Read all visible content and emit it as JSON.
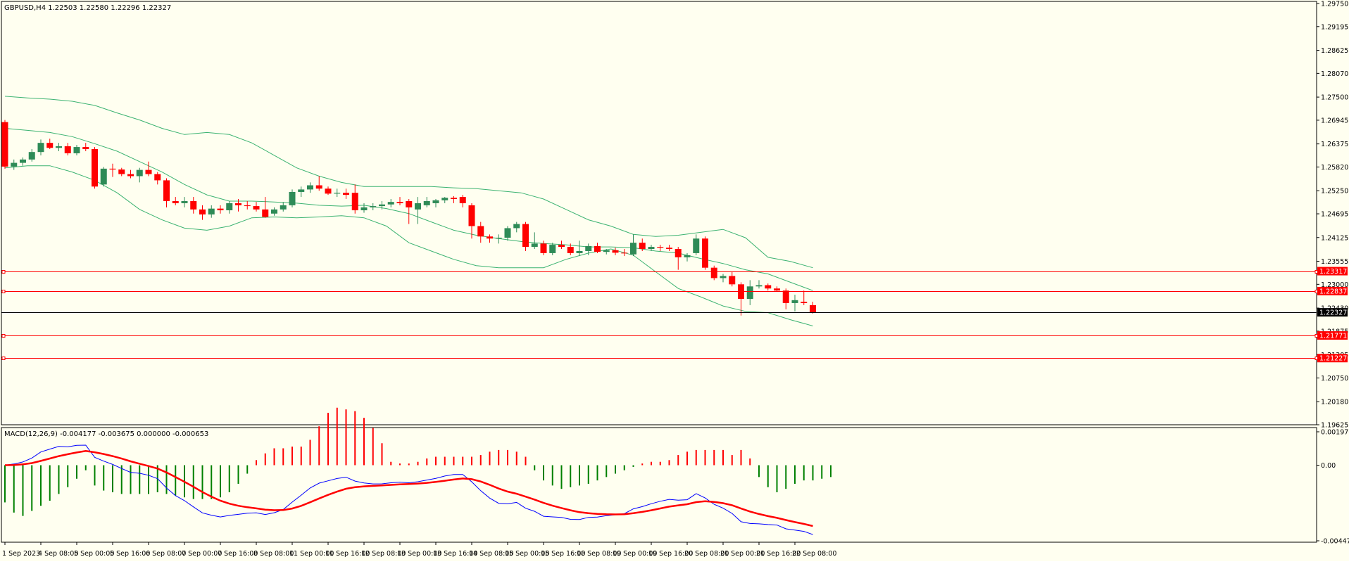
{
  "colors": {
    "background": "#fffff0",
    "frame": "#000000",
    "bull": "#2e8b57",
    "bear": "#ff0000",
    "bands": "#3cb371",
    "level_line": "#ff0000",
    "price_line": "#000000",
    "macd_line": "#0000ff",
    "signal_line": "#ff0000",
    "hist_pos": "#ff0000",
    "hist_neg": "#008000"
  },
  "chart_data": [
    {
      "type": "candlestick",
      "title": "GBPUSD,H4  1.22503 1.22580 1.22296 1.22327",
      "ylim": [
        1.19625,
        1.298
      ],
      "y_ticks": [
        "1.29750",
        "1.29195",
        "1.28625",
        "1.28070",
        "1.27500",
        "1.26945",
        "1.26375",
        "1.25820",
        "1.25250",
        "1.24695",
        "1.24125",
        "1.23555",
        "1.23000",
        "1.22430",
        "1.21875",
        "1.21305",
        "1.20750",
        "1.20180",
        "1.19625"
      ],
      "x_labels": [
        "1 Sep 2023",
        "4 Sep 08:00",
        "5 Sep 00:00",
        "5 Sep 16:00",
        "6 Sep 08:00",
        "7 Sep 00:00",
        "7 Sep 16:00",
        "8 Sep 08:00",
        "11 Sep 00:00",
        "11 Sep 16:00",
        "12 Sep 08:00",
        "13 Sep 00:00",
        "13 Sep 16:00",
        "14 Sep 08:00",
        "15 Sep 00:00",
        "15 Sep 16:00",
        "18 Sep 08:00",
        "19 Sep 00:00",
        "19 Sep 16:00",
        "20 Sep 08:00",
        "21 Sep 00:00",
        "21 Sep 16:00",
        "22 Sep 08:00"
      ],
      "x_label_candle_index": [
        0,
        4,
        8,
        12,
        16,
        20,
        24,
        28,
        32,
        36,
        40,
        44,
        48,
        52,
        56,
        60,
        64,
        68,
        72,
        76,
        80,
        84,
        88
      ],
      "candles": [
        [
          1.269,
          1.2695,
          1.2578,
          1.2583
        ],
        [
          1.2583,
          1.26,
          1.2575,
          1.2592
        ],
        [
          1.2592,
          1.2605,
          1.2585,
          1.26
        ],
        [
          1.26,
          1.2625,
          1.2595,
          1.2618
        ],
        [
          1.2618,
          1.2648,
          1.261,
          1.264
        ],
        [
          1.264,
          1.265,
          1.2625,
          1.2628
        ],
        [
          1.2628,
          1.264,
          1.262,
          1.2632
        ],
        [
          1.2632,
          1.264,
          1.261,
          1.2615
        ],
        [
          1.2615,
          1.2635,
          1.261,
          1.263
        ],
        [
          1.263,
          1.264,
          1.262,
          1.2625
        ],
        [
          1.2625,
          1.263,
          1.253,
          1.2535
        ],
        [
          1.254,
          1.2582,
          1.2535,
          1.2578
        ],
        [
          1.2578,
          1.259,
          1.2558,
          1.2576
        ],
        [
          1.2576,
          1.258,
          1.256,
          1.2565
        ],
        [
          1.2565,
          1.2575,
          1.2555,
          1.256
        ],
        [
          1.256,
          1.258,
          1.2545,
          1.2575
        ],
        [
          1.2575,
          1.2595,
          1.256,
          1.2565
        ],
        [
          1.2565,
          1.257,
          1.254,
          1.255
        ],
        [
          1.255,
          1.2555,
          1.2485,
          1.25
        ],
        [
          1.25,
          1.251,
          1.249,
          1.2495
        ],
        [
          1.2495,
          1.251,
          1.2485,
          1.25
        ],
        [
          1.25,
          1.251,
          1.247,
          1.248
        ],
        [
          1.248,
          1.249,
          1.2455,
          1.2468
        ],
        [
          1.2468,
          1.249,
          1.246,
          1.2482
        ],
        [
          1.2482,
          1.249,
          1.247,
          1.2478
        ],
        [
          1.2478,
          1.25,
          1.247,
          1.2495
        ],
        [
          1.2495,
          1.2505,
          1.2475,
          1.249
        ],
        [
          1.249,
          1.25,
          1.248,
          1.2488
        ],
        [
          1.2488,
          1.2498,
          1.2475,
          1.248
        ],
        [
          1.248,
          1.251,
          1.246,
          1.2462
        ],
        [
          1.247,
          1.2485,
          1.2465,
          1.248
        ],
        [
          1.248,
          1.2498,
          1.2475,
          1.249
        ],
        [
          1.249,
          1.2528,
          1.2485,
          1.2522
        ],
        [
          1.2522,
          1.2535,
          1.251,
          1.2528
        ],
        [
          1.2528,
          1.2545,
          1.252,
          1.2538
        ],
        [
          1.2538,
          1.256,
          1.2525,
          1.253
        ],
        [
          1.253,
          1.2535,
          1.2515,
          1.2518
        ],
        [
          1.2518,
          1.253,
          1.251,
          1.252
        ],
        [
          1.252,
          1.253,
          1.2505,
          1.2515
        ],
        [
          1.252,
          1.254,
          1.247,
          1.2478
        ],
        [
          1.2478,
          1.2495,
          1.2472,
          1.2485
        ],
        [
          1.2485,
          1.2495,
          1.2478,
          1.2488
        ],
        [
          1.2488,
          1.25,
          1.248,
          1.2492
        ],
        [
          1.2492,
          1.2505,
          1.2485,
          1.2498
        ],
        [
          1.2498,
          1.251,
          1.249,
          1.2495
        ],
        [
          1.25,
          1.2505,
          1.2445,
          1.2485
        ],
        [
          1.248,
          1.251,
          1.2445,
          1.2495
        ],
        [
          1.249,
          1.251,
          1.2485,
          1.25
        ],
        [
          1.2495,
          1.2505,
          1.2485,
          1.2502
        ],
        [
          1.2502,
          1.251,
          1.2495,
          1.2508
        ],
        [
          1.2508,
          1.2512,
          1.2495,
          1.2505
        ],
        [
          1.251,
          1.2515,
          1.2485,
          1.2495
        ],
        [
          1.249,
          1.2495,
          1.241,
          1.244
        ],
        [
          1.244,
          1.245,
          1.24,
          1.2415
        ],
        [
          1.2415,
          1.242,
          1.24,
          1.241
        ],
        [
          1.241,
          1.242,
          1.2398,
          1.2412
        ],
        [
          1.2412,
          1.244,
          1.2405,
          1.2435
        ],
        [
          1.2435,
          1.245,
          1.2425,
          1.2445
        ],
        [
          1.2445,
          1.245,
          1.238,
          1.239
        ],
        [
          1.239,
          1.2425,
          1.2385,
          1.2398
        ],
        [
          1.2398,
          1.2405,
          1.237,
          1.2375
        ],
        [
          1.2375,
          1.24,
          1.237,
          1.2395
        ],
        [
          1.2395,
          1.2405,
          1.2385,
          1.239
        ],
        [
          1.239,
          1.2398,
          1.237,
          1.2375
        ],
        [
          1.2375,
          1.2405,
          1.2368,
          1.238
        ],
        [
          1.238,
          1.2398,
          1.237,
          1.2392
        ],
        [
          1.2392,
          1.24,
          1.2375,
          1.2378
        ],
        [
          1.2378,
          1.2385,
          1.2372,
          1.2382
        ],
        [
          1.2382,
          1.2388,
          1.237,
          1.2376
        ],
        [
          1.2376,
          1.2385,
          1.2368,
          1.2375
        ],
        [
          1.2372,
          1.242,
          1.2368,
          1.24
        ],
        [
          1.24,
          1.241,
          1.238,
          1.2385
        ],
        [
          1.2385,
          1.2395,
          1.238,
          1.239
        ],
        [
          1.239,
          1.2395,
          1.238,
          1.2388
        ],
        [
          1.2388,
          1.2395,
          1.238,
          1.2385
        ],
        [
          1.2385,
          1.239,
          1.2335,
          1.2365
        ],
        [
          1.2365,
          1.2375,
          1.2355,
          1.237
        ],
        [
          1.2375,
          1.242,
          1.237,
          1.241
        ],
        [
          1.241,
          1.2415,
          1.2335,
          1.234
        ],
        [
          1.234,
          1.2345,
          1.231,
          1.2315
        ],
        [
          1.2315,
          1.2325,
          1.2305,
          1.232
        ],
        [
          1.232,
          1.233,
          1.2295,
          1.23
        ],
        [
          1.23,
          1.2305,
          1.2225,
          1.2265
        ],
        [
          1.2265,
          1.231,
          1.225,
          1.2295
        ],
        [
          1.2295,
          1.231,
          1.229,
          1.2298
        ],
        [
          1.2298,
          1.2302,
          1.2285,
          1.229
        ],
        [
          1.229,
          1.2295,
          1.2282,
          1.2285
        ],
        [
          1.2285,
          1.229,
          1.224,
          1.2255
        ],
        [
          1.2255,
          1.2275,
          1.2235,
          1.2262
        ],
        [
          1.2258,
          1.2285,
          1.225,
          1.2255
        ],
        [
          1.225,
          1.2258,
          1.223,
          1.2233
        ]
      ],
      "bollinger": {
        "upper": [
          1.2752,
          1.2748,
          1.2745,
          1.274,
          1.273,
          1.2712,
          1.2695,
          1.2675,
          1.266,
          1.2665,
          1.266,
          1.264,
          1.261,
          1.258,
          1.256,
          1.2545,
          1.2535,
          1.2535,
          1.2535,
          1.2535,
          1.2532,
          1.253,
          1.2525,
          1.252,
          1.2505,
          1.248,
          1.2455,
          1.244,
          1.242,
          1.2415,
          1.2418,
          1.2425,
          1.2432,
          1.2412,
          1.2365,
          1.2355,
          1.234
        ],
        "middle": [
          1.2675,
          1.267,
          1.2665,
          1.2655,
          1.2638,
          1.262,
          1.2595,
          1.257,
          1.254,
          1.2515,
          1.25,
          1.25,
          1.2498,
          1.2495,
          1.249,
          1.2488,
          1.249,
          1.2482,
          1.247,
          1.245,
          1.243,
          1.2418,
          1.241,
          1.2403,
          1.2398,
          1.2395,
          1.239,
          1.239,
          1.2388,
          1.238,
          1.2375,
          1.2362,
          1.235,
          1.2335,
          1.2325,
          1.2305,
          1.2285
        ],
        "lower": [
          1.258,
          1.2585,
          1.2585,
          1.257,
          1.255,
          1.252,
          1.248,
          1.2455,
          1.2435,
          1.243,
          1.244,
          1.246,
          1.2462,
          1.246,
          1.2462,
          1.2465,
          1.246,
          1.244,
          1.24,
          1.238,
          1.236,
          1.2345,
          1.234,
          1.234,
          1.234,
          1.236,
          1.2375,
          1.2385,
          1.237,
          1.233,
          1.229,
          1.227,
          1.2248,
          1.2235,
          1.2232,
          1.2215,
          1.22
        ],
        "index_step": 2.5
      },
      "levels": [
        {
          "label": "1.23317",
          "value": 1.23317,
          "style": "red"
        },
        {
          "label": "1.22837",
          "value": 1.22837,
          "style": "red"
        },
        {
          "label": "1.22327",
          "value": 1.22327,
          "style": "black"
        },
        {
          "label": "1.21771",
          "value": 1.21771,
          "style": "red"
        },
        {
          "label": "1.21227",
          "value": 1.21227,
          "style": "red"
        }
      ],
      "grid": false
    },
    {
      "type": "macd",
      "title": "MACD(12,26,9) -0.004177 -0.003675 0.000000 -0.000653",
      "ylim": [
        -0.00447,
        0.001976
      ],
      "y_ticks": [
        "0.001976",
        "0.00",
        "-0.00447"
      ],
      "histogram": [
        -0.0022,
        -0.0028,
        -0.003,
        -0.0027,
        -0.0024,
        -0.0021,
        -0.0017,
        -0.0013,
        -0.0008,
        -0.0003,
        -0.0012,
        -0.0015,
        -0.0016,
        -0.0017,
        -0.0017,
        -0.0017,
        -0.0017,
        -0.0016,
        -0.0017,
        -0.0018,
        -0.0019,
        -0.002,
        -0.002,
        -0.002,
        -0.0019,
        -0.0016,
        -0.0011,
        -0.0005,
        0.0003,
        0.0007,
        0.001,
        0.001,
        0.0011,
        0.0011,
        0.0015,
        0.0023,
        0.0031,
        0.0034,
        0.0033,
        0.0032,
        0.0028,
        0.0022,
        0.0013,
        0.0002,
        0.0001,
        0.0001,
        0.0002,
        0.0004,
        0.0005,
        0.0005,
        0.0005,
        0.0005,
        0.0005,
        0.0006,
        0.0008,
        0.0009,
        0.0009,
        0.0008,
        0.0005,
        -0.0003,
        -0.0009,
        -0.0012,
        -0.0014,
        -0.0013,
        -0.0012,
        -0.0011,
        -0.0009,
        -0.0007,
        -0.0005,
        -0.0003,
        -0.0001,
        0.0001,
        0.0002,
        0.0002,
        0.0003,
        0.0006,
        0.0008,
        0.0009,
        0.0009,
        0.0009,
        0.0009,
        0.0006,
        0.0009,
        0.0004,
        -0.0007,
        -0.0013,
        -0.0016,
        -0.0014,
        -0.0011,
        -0.0009,
        -0.0009,
        -0.0008,
        -0.0007
      ]
    }
  ]
}
